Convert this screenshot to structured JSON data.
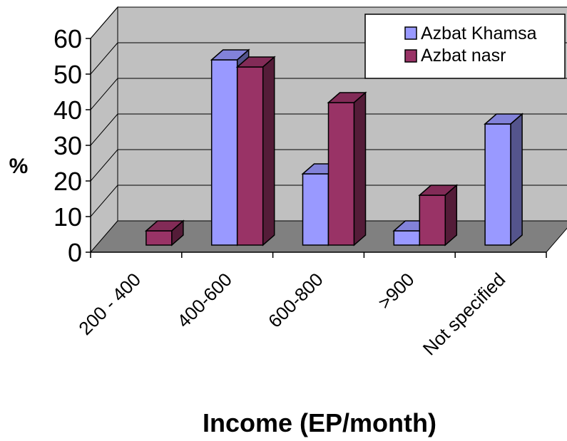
{
  "chart_data": {
    "type": "bar",
    "title": "",
    "xlabel": "Income (EP/month)",
    "ylabel": "%",
    "ylim": [
      0,
      60
    ],
    "yticks": [
      "0",
      "10",
      "20",
      "30",
      "40",
      "50",
      "60"
    ],
    "categories": [
      "200 - 400",
      "400-600",
      "600-800",
      ">900",
      "Not specified"
    ],
    "series": [
      {
        "name": "Azbat Khamsa",
        "values": [
          0,
          52,
          20,
          4,
          34
        ],
        "color": "#9999ff"
      },
      {
        "name": "Azbat nasr",
        "values": [
          4,
          50,
          40,
          14,
          0
        ],
        "color": "#993366"
      }
    ],
    "grid": true,
    "legend": "top-right",
    "style": "3d-clustered-column",
    "colors": {
      "wall": "#c0c0c0",
      "floor": "#808080",
      "grid": "#000000"
    }
  }
}
